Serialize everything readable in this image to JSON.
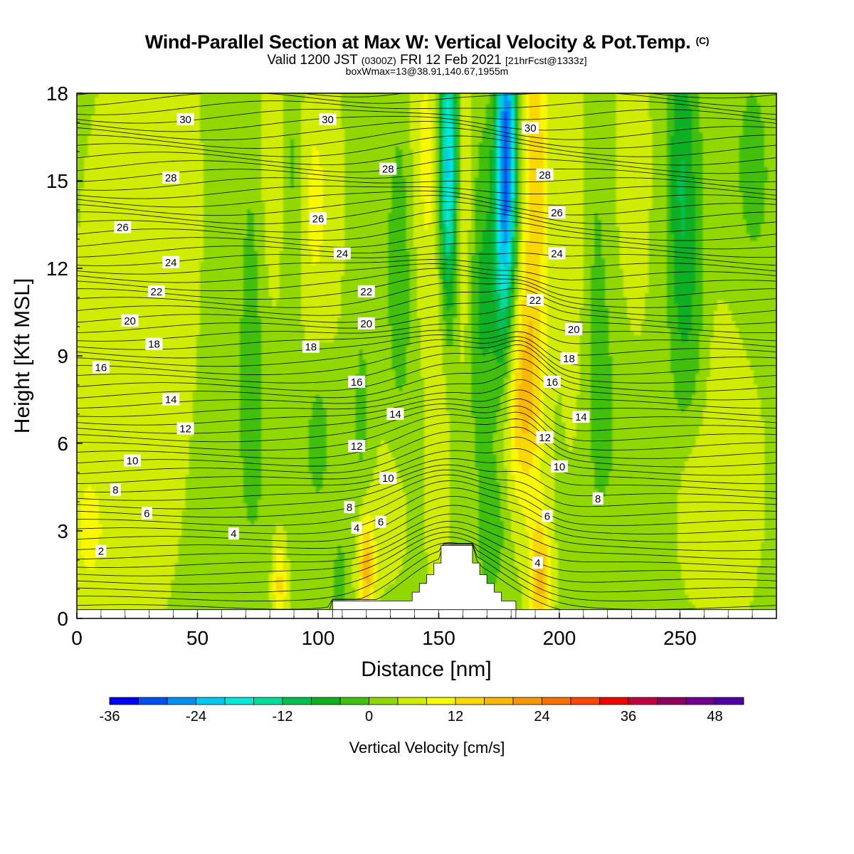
{
  "header": {
    "title": "Wind-Parallel Section at Max W: Vertical Velocity & Pot.Temp.",
    "title_mark": "(C)",
    "valid_prefix": "Valid 1200 JST",
    "valid_utc": "(0300Z)",
    "valid_date": "FRI 12 Feb 2021",
    "valid_fcst": "[21hrFcst@1333z]",
    "box_info": "boxWmax=13@38.91,140.67,1955m"
  },
  "chart_data": {
    "type": "heatmap",
    "xlabel": "Distance [nm]",
    "ylabel": "Height [Kft MSL]",
    "xlim": [
      0,
      290
    ],
    "ylim": [
      0,
      18
    ],
    "x_ticks": [
      0,
      50,
      100,
      150,
      200,
      250
    ],
    "y_ticks": [
      0,
      3,
      6,
      9,
      12,
      15,
      18
    ],
    "x_tick_labels": [
      "0",
      "50",
      "100",
      "150",
      "200",
      "250"
    ],
    "y_tick_labels": [
      "0",
      "3",
      "6",
      "9",
      "12",
      "15",
      "18"
    ],
    "colorbar": {
      "label": "Vertical Velocity [cm/s]",
      "min": -36,
      "step": 4,
      "tick_values": [
        -36,
        -24,
        -12,
        0,
        12,
        24,
        36,
        48
      ],
      "tick_labels": [
        "-36",
        "-24",
        "-12",
        "0",
        "12",
        "24",
        "36",
        "48"
      ],
      "colors": [
        "#0000f0",
        "#0050f0",
        "#0090f0",
        "#00c8f0",
        "#00e8dc",
        "#00dc9c",
        "#00c050",
        "#10b020",
        "#40c010",
        "#90d800",
        "#d0ec00",
        "#f8f800",
        "#f8d800",
        "#f8b800",
        "#f89800",
        "#f87000",
        "#f84800",
        "#f00000",
        "#c00040",
        "#900060",
        "#700090",
        "#5000a0"
      ]
    },
    "terrain": [
      [
        106,
        0
      ],
      [
        106,
        0.6
      ],
      [
        139,
        0.6
      ],
      [
        139,
        0.9
      ],
      [
        142,
        0.9
      ],
      [
        142,
        1.2
      ],
      [
        145,
        1.2
      ],
      [
        145,
        1.5
      ],
      [
        148,
        1.5
      ],
      [
        148,
        1.9
      ],
      [
        151,
        1.9
      ],
      [
        151,
        2.5
      ],
      [
        164,
        2.5
      ],
      [
        164,
        1.9
      ],
      [
        167,
        1.9
      ],
      [
        167,
        1.5
      ],
      [
        170,
        1.5
      ],
      [
        170,
        1.2
      ],
      [
        173,
        1.2
      ],
      [
        173,
        0.9
      ],
      [
        176,
        0.9
      ],
      [
        176,
        0.6
      ],
      [
        182,
        0.6
      ],
      [
        182,
        0
      ],
      [
        290,
        0
      ]
    ],
    "w_field": [
      {
        "x": 20,
        "z": 9,
        "w": 2,
        "sx": 18,
        "sz": 9
      },
      {
        "x": 40,
        "z": 12,
        "w": 3,
        "sx": 8,
        "sz": 6
      },
      {
        "x": 70,
        "z": 5,
        "w": -2,
        "sx": 18,
        "sz": 5
      },
      {
        "x": 73,
        "z": 11,
        "w": -4,
        "sx": 4,
        "sz": 5
      },
      {
        "x": 80,
        "z": 15,
        "w": 4,
        "sx": 4,
        "sz": 4
      },
      {
        "x": 84,
        "z": 1.2,
        "w": 11,
        "sx": 2.2,
        "sz": 1.2
      },
      {
        "x": 90,
        "z": 15,
        "w": -6,
        "sx": 3,
        "sz": 4
      },
      {
        "x": 98,
        "z": 14,
        "w": 6,
        "sx": 7,
        "sz": 4
      },
      {
        "x": 100,
        "z": 6.5,
        "w": -5,
        "sx": 4,
        "sz": 2
      },
      {
        "x": 109,
        "z": 1.0,
        "w": -6,
        "sx": 2,
        "sz": 1.2
      },
      {
        "x": 120,
        "z": 1.8,
        "w": 15,
        "sx": 2.5,
        "sz": 1.3
      },
      {
        "x": 118,
        "z": 7,
        "w": -4,
        "sx": 3,
        "sz": 3
      },
      {
        "x": 134,
        "z": 12,
        "w": -6,
        "sx": 4,
        "sz": 4
      },
      {
        "x": 130,
        "z": 4,
        "w": 3,
        "sx": 6,
        "sz": 2
      },
      {
        "x": 145,
        "z": 16,
        "w": 6,
        "sx": 5,
        "sz": 4
      },
      {
        "x": 150,
        "z": 6,
        "w": 5,
        "sx": 3,
        "sz": 6
      },
      {
        "x": 154,
        "z": 15.5,
        "w": -26,
        "sx": 3,
        "sz": 3.5
      },
      {
        "x": 160,
        "z": 14,
        "w": 8,
        "sx": 3,
        "sz": 4
      },
      {
        "x": 168,
        "z": 11,
        "w": -8,
        "sx": 5,
        "sz": 4
      },
      {
        "x": 172,
        "z": 3,
        "w": -6,
        "sx": 4,
        "sz": 1.5
      },
      {
        "x": 178,
        "z": 16.5,
        "w": -30,
        "sx": 3,
        "sz": 3.5
      },
      {
        "x": 177,
        "z": 12,
        "w": -10,
        "sx": 3,
        "sz": 3
      },
      {
        "x": 185,
        "z": 7.5,
        "w": 13,
        "sx": 5,
        "sz": 2.6
      },
      {
        "x": 190,
        "z": 15,
        "w": 12,
        "sx": 4,
        "sz": 5
      },
      {
        "x": 192,
        "z": 1.4,
        "w": 14,
        "sx": 3,
        "sz": 1.6
      },
      {
        "x": 206,
        "z": 13,
        "w": 4,
        "sx": 4,
        "sz": 5
      },
      {
        "x": 215,
        "z": 12,
        "w": -3,
        "sx": 4,
        "sz": 6
      },
      {
        "x": 222,
        "z": 7,
        "w": -3,
        "sx": 8,
        "sz": 4
      },
      {
        "x": 230,
        "z": 15,
        "w": 4,
        "sx": 5,
        "sz": 5
      },
      {
        "x": 250,
        "z": 15,
        "w": -10,
        "sx": 4,
        "sz": 5
      },
      {
        "x": 256,
        "z": 11,
        "w": -5,
        "sx": 4,
        "sz": 5
      },
      {
        "x": 256,
        "z": 4,
        "w": 5,
        "sx": 5,
        "sz": 2
      },
      {
        "x": 270,
        "z": 6,
        "w": 4,
        "sx": 10,
        "sz": 4
      },
      {
        "x": 280,
        "z": 15,
        "w": -4,
        "sx": 8,
        "sz": 4
      },
      {
        "x": 5,
        "z": 3,
        "w": 5,
        "sx": 6,
        "sz": 2
      }
    ],
    "isentrope_labels": [
      {
        "text": "30",
        "x": 45,
        "z": 17.1
      },
      {
        "text": "30",
        "x": 104,
        "z": 17.1
      },
      {
        "text": "30",
        "x": 188,
        "z": 16.8
      },
      {
        "text": "28",
        "x": 39,
        "z": 15.1
      },
      {
        "text": "28",
        "x": 129,
        "z": 15.4
      },
      {
        "text": "28",
        "x": 194,
        "z": 15.2
      },
      {
        "text": "26",
        "x": 19,
        "z": 13.4
      },
      {
        "text": "26",
        "x": 100,
        "z": 13.7
      },
      {
        "text": "26",
        "x": 199,
        "z": 13.9
      },
      {
        "text": "24",
        "x": 39,
        "z": 12.2
      },
      {
        "text": "24",
        "x": 110,
        "z": 12.5
      },
      {
        "text": "24",
        "x": 199,
        "z": 12.5
      },
      {
        "text": "22",
        "x": 33,
        "z": 11.2
      },
      {
        "text": "22",
        "x": 120,
        "z": 11.2
      },
      {
        "text": "22",
        "x": 190,
        "z": 10.9
      },
      {
        "text": "20",
        "x": 22,
        "z": 10.2
      },
      {
        "text": "20",
        "x": 120,
        "z": 10.1
      },
      {
        "text": "20",
        "x": 206,
        "z": 9.9
      },
      {
        "text": "18",
        "x": 32,
        "z": 9.4
      },
      {
        "text": "18",
        "x": 97,
        "z": 9.3
      },
      {
        "text": "18",
        "x": 204,
        "z": 8.9
      },
      {
        "text": "16",
        "x": 10,
        "z": 8.6
      },
      {
        "text": "16",
        "x": 116,
        "z": 8.1
      },
      {
        "text": "16",
        "x": 197,
        "z": 8.1
      },
      {
        "text": "14",
        "x": 39,
        "z": 7.5
      },
      {
        "text": "14",
        "x": 132,
        "z": 7.0
      },
      {
        "text": "14",
        "x": 209,
        "z": 6.9
      },
      {
        "text": "12",
        "x": 45,
        "z": 6.5
      },
      {
        "text": "12",
        "x": 116,
        "z": 5.9
      },
      {
        "text": "12",
        "x": 194,
        "z": 6.2
      },
      {
        "text": "10",
        "x": 23,
        "z": 5.4
      },
      {
        "text": "10",
        "x": 129,
        "z": 4.8
      },
      {
        "text": "10",
        "x": 200,
        "z": 5.2
      },
      {
        "text": "8",
        "x": 16,
        "z": 4.4
      },
      {
        "text": "8",
        "x": 113,
        "z": 3.8
      },
      {
        "text": "8",
        "x": 216,
        "z": 4.1
      },
      {
        "text": "6",
        "x": 29,
        "z": 3.6
      },
      {
        "text": "6",
        "x": 126,
        "z": 3.3
      },
      {
        "text": "6",
        "x": 195,
        "z": 3.5
      },
      {
        "text": "4",
        "x": 65,
        "z": 2.9
      },
      {
        "text": "4",
        "x": 116,
        "z": 3.1
      },
      {
        "text": "4",
        "x": 191,
        "z": 1.9
      },
      {
        "text": "2",
        "x": 10,
        "z": 2.3
      }
    ]
  }
}
